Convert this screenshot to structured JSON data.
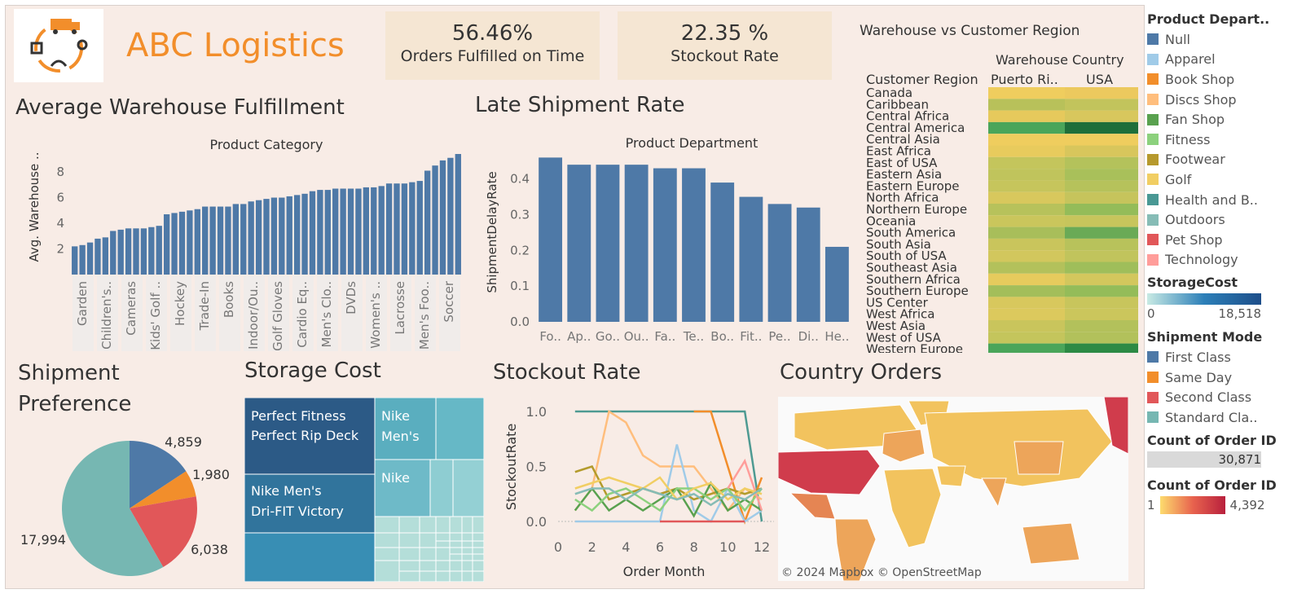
{
  "header": {
    "title": "ABC Logistics"
  },
  "kpis": [
    {
      "value": "56.46%",
      "label": "Orders Fulfilled on Time"
    },
    {
      "value": "22.35 %",
      "label": "Stockout Rate"
    }
  ],
  "heatmap": {
    "title": "Warehouse vs Customer Region",
    "col_header": "Warehouse Country",
    "row_header": "Customer Region",
    "columns": [
      "Puerto Ri..",
      "USA"
    ],
    "rows": [
      "Canada",
      "Caribbean",
      "Central Africa",
      "Central America",
      "Central Asia",
      "East Africa",
      "East of USA",
      "Eastern Asia",
      "Eastern Europe",
      "North Africa",
      "Northern Europe",
      "Oceania",
      "South America",
      "South Asia",
      "South of  USA",
      "Southeast Asia",
      "Southern Africa",
      "Southern Europe",
      "US Center",
      "West Africa",
      "West Asia",
      "West of USA",
      "Western Europe"
    ],
    "colors": [
      [
        "#efcd5e",
        "#ecc95e"
      ],
      [
        "#b8c15a",
        "#c2c45c"
      ],
      [
        "#e6c95c",
        "#d8c75d"
      ],
      [
        "#4aa55a",
        "#1e6e3a"
      ],
      [
        "#efcd5e",
        "#efcd5e"
      ],
      [
        "#e8cb5d",
        "#d8c65c"
      ],
      [
        "#c4c55c",
        "#b4c25b"
      ],
      [
        "#c0c45c",
        "#a9c05a"
      ],
      [
        "#c6c55c",
        "#b6c25b"
      ],
      [
        "#d8c85d",
        "#c6c45c"
      ],
      [
        "#b7c25b",
        "#94bc59"
      ],
      [
        "#cac65c",
        "#c7c55c"
      ],
      [
        "#a8be5a",
        "#6aaa56"
      ],
      [
        "#c9c55c",
        "#b8c25b"
      ],
      [
        "#d2c75d",
        "#c1c45c"
      ],
      [
        "#b3c15b",
        "#9fbe5a"
      ],
      [
        "#e6cb5d",
        "#d3c75d"
      ],
      [
        "#a3be5a",
        "#94bc59"
      ],
      [
        "#d8c85d",
        "#c8c55c"
      ],
      [
        "#dcc95d",
        "#cbc65c"
      ],
      [
        "#c9c55c",
        "#b3c15b"
      ],
      [
        "#c4c55c",
        "#b2c15b"
      ],
      [
        "#4aa55a",
        "#2d8a45"
      ]
    ]
  },
  "fulfillment": {
    "title": "Average Warehouse Fulfillment",
    "chart_data": {
      "type": "bar",
      "title": "Product Category",
      "ylabel": "Avg. Warehouse ..",
      "ylim": [
        0,
        9.4
      ],
      "yticks": [
        "2",
        "4",
        "6",
        "8"
      ],
      "tick_labels": [
        "Garden",
        "Children's..",
        "Cameras",
        "Kids' Golf ..",
        "Hockey",
        "Trade-In",
        "Books",
        "Indoor/Ou..",
        "Golf Gloves",
        "Cardio Eq..",
        "Men's Clo..",
        "DVDs",
        "Women's ..",
        "Lacrosse",
        "Men's Foo..",
        "Soccer"
      ],
      "values": [
        2.2,
        2.3,
        2.5,
        2.8,
        2.9,
        3.4,
        3.5,
        3.6,
        3.6,
        3.6,
        3.7,
        3.8,
        4.7,
        4.8,
        4.9,
        5.0,
        5.1,
        5.3,
        5.3,
        5.3,
        5.3,
        5.5,
        5.5,
        5.7,
        5.8,
        5.9,
        6.0,
        6.0,
        6.1,
        6.2,
        6.3,
        6.5,
        6.6,
        6.6,
        6.7,
        6.7,
        6.7,
        6.7,
        6.8,
        6.8,
        6.9,
        7.1,
        7.1,
        7.1,
        7.2,
        7.3,
        8.1,
        8.5,
        8.9,
        9.1,
        9.4
      ]
    }
  },
  "late": {
    "title": "Late Shipment Rate",
    "chart_data": {
      "type": "bar",
      "title": "Product Department",
      "ylabel": "ShipmentDelayRate",
      "ylim": [
        0,
        0.47
      ],
      "yticks": [
        "0.0",
        "0.1",
        "0.2",
        "0.3",
        "0.4"
      ],
      "categories": [
        "Fo..",
        "Ap..",
        "Go..",
        "Ou..",
        "Fa..",
        "Te..",
        "Bo..",
        "Fit..",
        "Pe..",
        "Di..",
        "He.."
      ],
      "values": [
        0.46,
        0.44,
        0.44,
        0.44,
        0.43,
        0.43,
        0.39,
        0.35,
        0.33,
        0.32,
        0.21
      ]
    }
  },
  "pie": {
    "title_line1": "Shipment",
    "title_line2": "Preference",
    "chart_data": {
      "type": "pie",
      "values": [
        4859,
        1980,
        6038,
        17994
      ],
      "labels": [
        "4,859",
        "1,980",
        "6,038",
        "17,994"
      ],
      "colors": [
        "#4e79a7",
        "#f28e2b",
        "#e15759",
        "#76b7b2"
      ]
    }
  },
  "treemap": {
    "title": "Storage Cost",
    "labels": [
      "Perfect Fitness",
      "Perfect Rip Deck",
      "Nike Men's",
      "Dri-FIT Victory",
      "Nike",
      "Men's",
      "Nike"
    ]
  },
  "stockout": {
    "title": "Stockout Rate",
    "chart_data": {
      "type": "line",
      "xlabel": "Order Month",
      "ylabel": "StockoutRate",
      "xlim": [
        0,
        12
      ],
      "ylim": [
        0,
        1
      ],
      "xticks": [
        "0",
        "2",
        "4",
        "6",
        "8",
        "10",
        "12"
      ],
      "yticks": [
        "0.0",
        "0.5",
        "1.0"
      ],
      "series": [
        {
          "color": "#4e9a92",
          "points": [
            [
              1,
              1
            ],
            [
              2,
              1
            ],
            [
              3,
              1
            ],
            [
              4,
              1
            ],
            [
              5,
              1
            ],
            [
              6,
              1
            ],
            [
              7,
              1
            ],
            [
              8,
              1
            ],
            [
              9,
              1
            ],
            [
              10,
              1
            ],
            [
              11,
              1
            ],
            [
              12,
              0
            ]
          ]
        },
        {
          "color": "#f28e2b",
          "points": [
            [
              8,
              1
            ],
            [
              9,
              1
            ],
            [
              10,
              0.5
            ],
            [
              11,
              0
            ],
            [
              12,
              0.4
            ]
          ]
        },
        {
          "color": "#ffbe7d",
          "points": [
            [
              1,
              0.1
            ],
            [
              2,
              0.3
            ],
            [
              3,
              1
            ],
            [
              4,
              0.9
            ],
            [
              5,
              0.6
            ],
            [
              6,
              0.5
            ],
            [
              7,
              0.5
            ],
            [
              8,
              0.5
            ],
            [
              9,
              0.3
            ],
            [
              10,
              0.1
            ],
            [
              11,
              0.3
            ],
            [
              12,
              0.2
            ]
          ]
        },
        {
          "color": "#a0cbe8",
          "points": [
            [
              1,
              0
            ],
            [
              2,
              0
            ],
            [
              3,
              0
            ],
            [
              4,
              0
            ],
            [
              5,
              0
            ],
            [
              6,
              0
            ],
            [
              7,
              0.7
            ],
            [
              8,
              0.1
            ],
            [
              9,
              0
            ],
            [
              10,
              0.3
            ],
            [
              11,
              0
            ],
            [
              12,
              0.1
            ]
          ]
        },
        {
          "color": "#b39b2c",
          "points": [
            [
              1,
              0.45
            ],
            [
              2,
              0.5
            ],
            [
              3,
              0.2
            ],
            [
              4,
              0.25
            ],
            [
              5,
              0.3
            ],
            [
              6,
              0.25
            ],
            [
              7,
              0.3
            ],
            [
              8,
              0.2
            ],
            [
              9,
              0.25
            ],
            [
              10,
              0.3
            ],
            [
              11,
              0.25
            ],
            [
              12,
              0.3
            ]
          ]
        },
        {
          "color": "#59a14f",
          "points": [
            [
              1,
              0.1
            ],
            [
              2,
              0.3
            ],
            [
              3,
              0.1
            ],
            [
              4,
              0.2
            ],
            [
              5,
              0.1
            ],
            [
              6,
              0.2
            ],
            [
              7,
              0.3
            ],
            [
              8,
              0.05
            ],
            [
              9,
              0.35
            ],
            [
              10,
              0.1
            ],
            [
              11,
              0.2
            ],
            [
              12,
              0.1
            ]
          ]
        },
        {
          "color": "#8cd17d",
          "points": [
            [
              1,
              0.2
            ],
            [
              2,
              0.1
            ],
            [
              3,
              0.25
            ],
            [
              4,
              0.3
            ],
            [
              5,
              0.2
            ],
            [
              6,
              0.1
            ],
            [
              7,
              0.3
            ],
            [
              8,
              0.3
            ],
            [
              9,
              0.2
            ],
            [
              10,
              0.3
            ],
            [
              11,
              0.1
            ],
            [
              12,
              0.3
            ]
          ]
        },
        {
          "color": "#ff9d9a",
          "points": [
            [
              10,
              0.3
            ],
            [
              11,
              0.55
            ],
            [
              12,
              0.1
            ]
          ]
        },
        {
          "color": "#e15759",
          "points": [
            [
              6,
              0
            ],
            [
              7,
              0
            ],
            [
              8,
              0
            ],
            [
              9,
              0
            ],
            [
              10,
              0
            ],
            [
              11,
              0
            ]
          ]
        },
        {
          "color": "#f1ce63",
          "points": [
            [
              1,
              0.3
            ],
            [
              2,
              0.35
            ],
            [
              3,
              0.4
            ],
            [
              4,
              0.35
            ],
            [
              5,
              0.3
            ],
            [
              6,
              0.4
            ],
            [
              7,
              0.2
            ],
            [
              8,
              0.3
            ],
            [
              9,
              0.35
            ],
            [
              10,
              0.2
            ],
            [
              11,
              0.3
            ],
            [
              12,
              0.25
            ]
          ]
        },
        {
          "color": "#86bcb6",
          "points": [
            [
              1,
              0.25
            ],
            [
              2,
              0.3
            ],
            [
              3,
              0.3
            ],
            [
              4,
              0.2
            ],
            [
              5,
              0.3
            ],
            [
              6,
              0.25
            ],
            [
              7,
              0.2
            ],
            [
              8,
              0.25
            ],
            [
              9,
              0.15
            ],
            [
              10,
              0.25
            ],
            [
              11,
              0.2
            ],
            [
              12,
              0.3
            ]
          ]
        }
      ]
    }
  },
  "map": {
    "title": "Country Orders",
    "attribution": "© 2024 Mapbox © OpenStreetMap"
  },
  "legend": {
    "dept_title": "Product Depart..",
    "departments": [
      {
        "name": "Null",
        "color": "#4e79a7"
      },
      {
        "name": "Apparel",
        "color": "#a0cbe8"
      },
      {
        "name": "Book Shop",
        "color": "#f28e2b"
      },
      {
        "name": "Discs Shop",
        "color": "#ffbe7d"
      },
      {
        "name": "Fan Shop",
        "color": "#59a14f"
      },
      {
        "name": "Fitness",
        "color": "#8cd17d"
      },
      {
        "name": "Footwear",
        "color": "#b6992d"
      },
      {
        "name": "Golf",
        "color": "#f1ce63"
      },
      {
        "name": "Health and B..",
        "color": "#499894"
      },
      {
        "name": "Outdoors",
        "color": "#86bcb6"
      },
      {
        "name": "Pet Shop",
        "color": "#e15759"
      },
      {
        "name": "Technology",
        "color": "#ff9d9a"
      }
    ],
    "storage_title": "StorageCost",
    "storage_min": "0",
    "storage_max": "18,518",
    "mode_title": "Shipment Mode",
    "modes": [
      {
        "name": "First Class",
        "color": "#4e79a7"
      },
      {
        "name": "Same Day",
        "color": "#f28e2b"
      },
      {
        "name": "Second Class",
        "color": "#e15759"
      },
      {
        "name": "Standard Cla..",
        "color": "#76b7b2"
      }
    ],
    "count_title": "Count of Order ID",
    "count_value": "30,871",
    "count2_title": "Count of Order ID",
    "count2_min": "1",
    "count2_max": "4,392"
  }
}
